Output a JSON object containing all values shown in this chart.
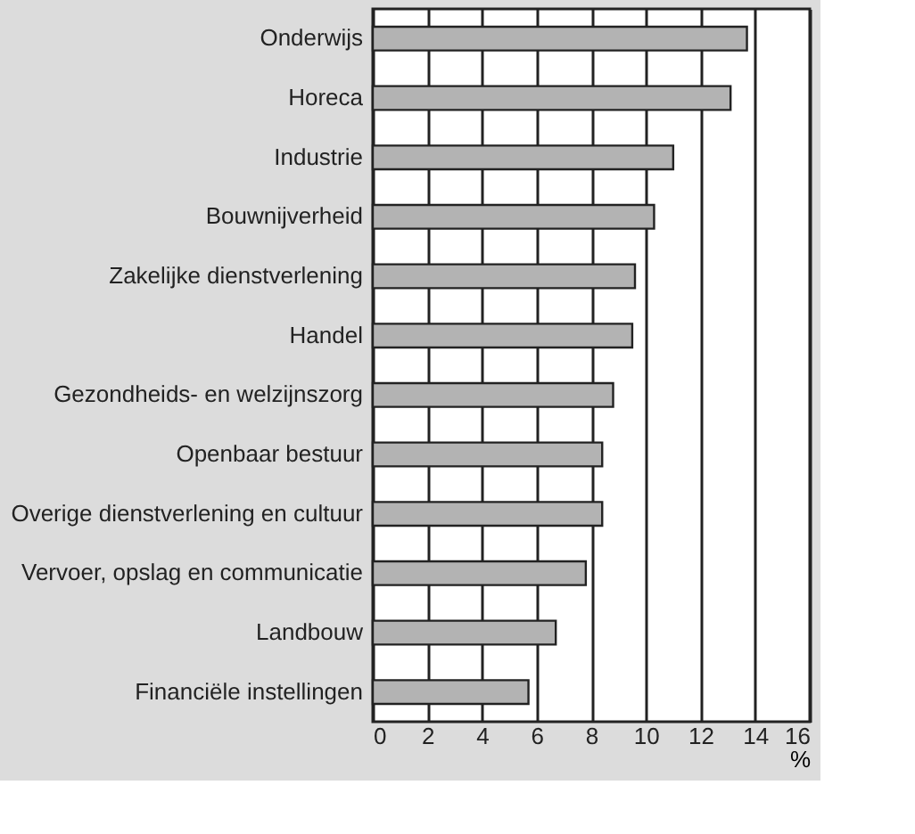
{
  "chart_data": {
    "type": "bar",
    "orientation": "horizontal",
    "xlabel": "%",
    "categories": [
      "Onderwijs",
      "Horeca",
      "Industrie",
      "Bouwnijverheid",
      "Zakelijke dienstverlening",
      "Handel",
      "Gezondheids- en welzijnszorg",
      "Openbaar bestuur",
      "Overige dienstverlening en cultuur",
      "Vervoer, opslag en communicatie",
      "Landbouw",
      "Financiële instellingen"
    ],
    "values": [
      13.7,
      13.1,
      11.0,
      10.3,
      9.6,
      9.5,
      8.8,
      8.4,
      8.4,
      7.8,
      6.7,
      5.7
    ],
    "color": "#b3b3b3",
    "xlim": [
      0,
      16
    ],
    "xticks": [
      0,
      2,
      4,
      6,
      8,
      10,
      12,
      14,
      16
    ],
    "grid": "x"
  }
}
